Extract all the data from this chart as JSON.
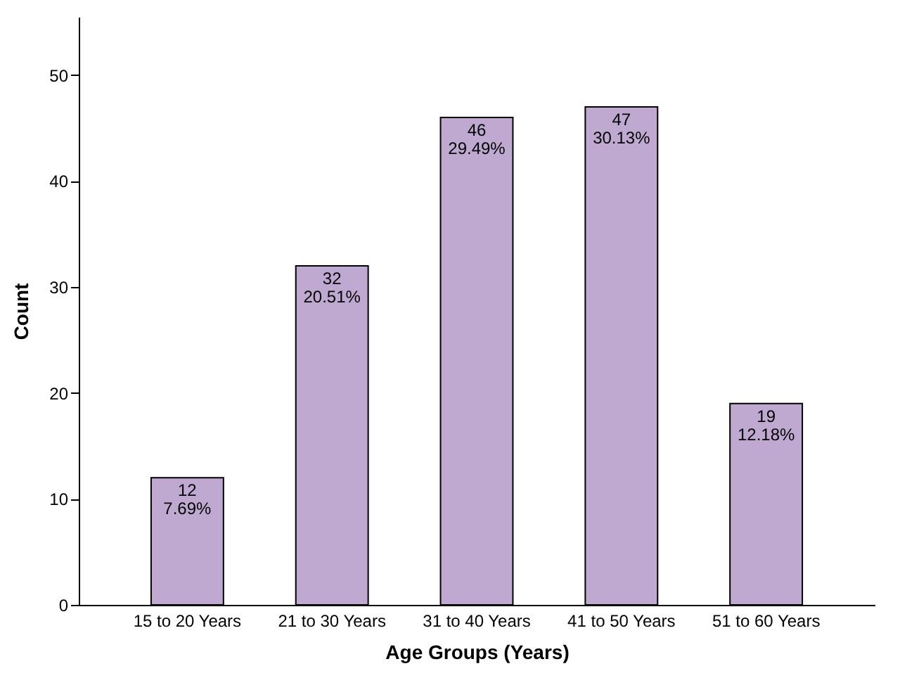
{
  "chart_data": {
    "type": "bar",
    "xlabel": "Age Groups (Years)",
    "ylabel": "Count",
    "categories": [
      "15 to 20 Years",
      "21 to 30 Years",
      "31 to 40 Years",
      "41 to 50 Years",
      "51 to 60 Years"
    ],
    "values": [
      12,
      32,
      46,
      47,
      19
    ],
    "color": "#c0a9d1",
    "value_labels": [
      "12\n7.69%",
      "32\n20.51%",
      "46\n29.49%",
      "47\n30.13%",
      "19\n12.18%"
    ],
    "ylim": [
      0,
      55.5
    ],
    "yticks": [
      0,
      10,
      20,
      30,
      40,
      50
    ],
    "grid": false
  }
}
